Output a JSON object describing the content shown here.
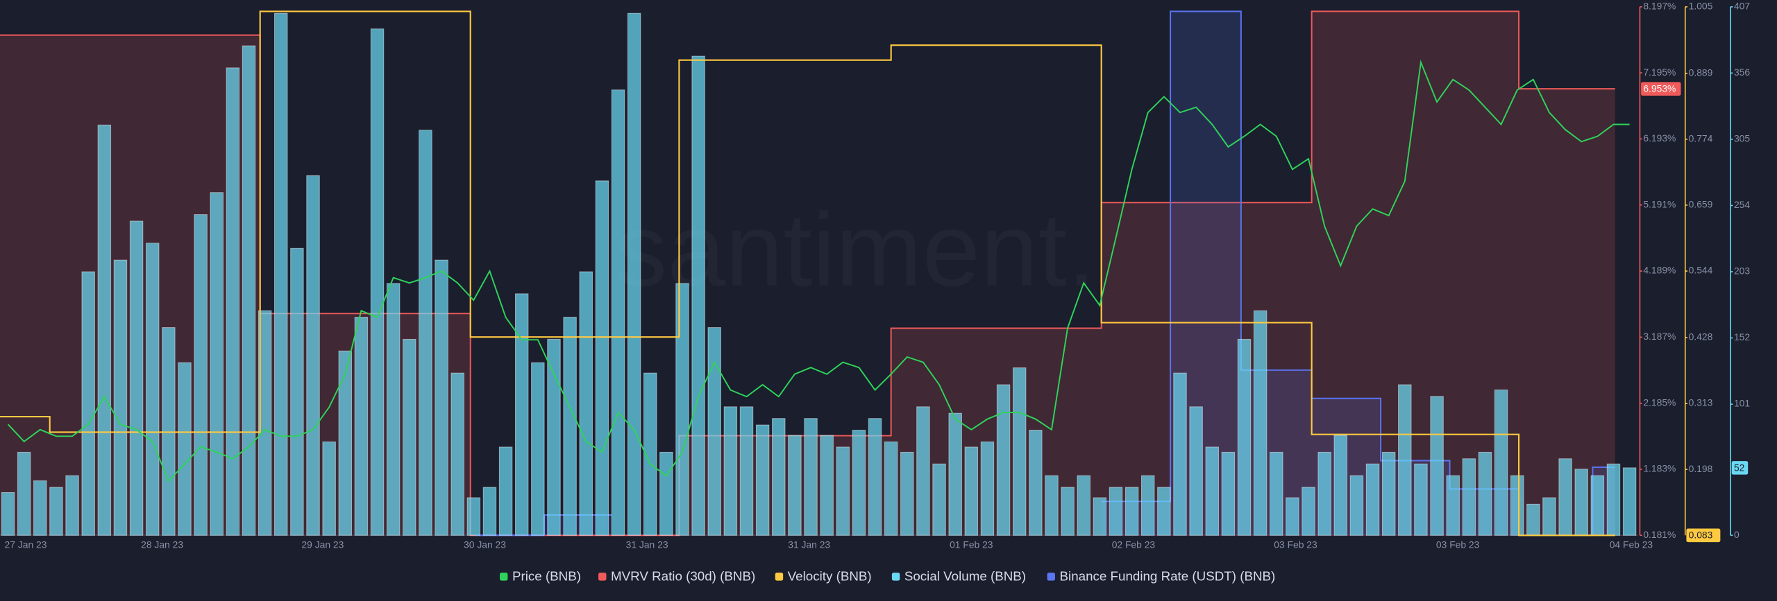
{
  "chart_data": {
    "type": "line",
    "watermark": "santiment.",
    "xlim": [
      0,
      102
    ],
    "xticks": [
      {
        "value": 1.6,
        "label": "27 Jan 23"
      },
      {
        "value": 10.1,
        "label": "28 Jan 23"
      },
      {
        "value": 20.1,
        "label": "29 Jan 23"
      },
      {
        "value": 30.2,
        "label": "30 Jan 23"
      },
      {
        "value": 40.3,
        "label": "31 Jan 23"
      },
      {
        "value": 50.4,
        "label": "31 Jan 23"
      },
      {
        "value": 60.5,
        "label": "01 Feb 23"
      },
      {
        "value": 70.6,
        "label": "02 Feb 23"
      },
      {
        "value": 80.7,
        "label": "03 Feb 23"
      },
      {
        "value": 90.8,
        "label": "03 Feb 23"
      },
      {
        "value": 101.6,
        "label": "04 Feb 23"
      }
    ],
    "x": [
      0.5,
      1.5,
      2.5,
      3.5,
      4.5,
      5.5,
      6.5,
      7.5,
      8.5,
      9.5,
      10.5,
      11.5,
      12.5,
      13.5,
      14.5,
      15.5,
      16.5,
      17.5,
      18.5,
      19.5,
      20.5,
      21.5,
      22.5,
      23.5,
      24.5,
      25.5,
      26.5,
      27.5,
      28.5,
      29.5,
      30.5,
      31.5,
      32.5,
      33.5,
      34.5,
      35.5,
      36.5,
      37.5,
      38.5,
      39.5,
      40.5,
      41.5,
      42.5,
      43.5,
      44.5,
      45.5,
      46.5,
      47.5,
      48.5,
      49.5,
      50.5,
      51.5,
      52.5,
      53.5,
      54.5,
      55.5,
      56.5,
      57.5,
      58.5,
      59.5,
      60.5,
      61.5,
      62.5,
      63.5,
      64.5,
      65.5,
      66.5,
      67.5,
      68.5,
      69.5,
      70.5,
      71.5,
      72.5,
      73.5,
      74.5,
      75.5,
      76.5,
      77.5,
      78.5,
      79.5,
      80.5,
      81.5,
      82.5,
      83.5,
      84.5,
      85.5,
      86.5,
      87.5,
      88.5,
      89.5,
      90.5,
      91.5,
      92.5,
      93.5,
      94.5,
      95.5,
      96.5,
      97.5,
      98.5,
      99.5,
      100.5,
      101.5
    ],
    "y_axes": [
      {
        "color": "#f05a5a",
        "ylim": [
          0.181,
          8.197
        ],
        "yticks": [
          {
            "value": 8.197,
            "label": "8.197%"
          },
          {
            "value": 7.195,
            "label": "7.195%"
          },
          {
            "value": 6.193,
            "label": "6.193%"
          },
          {
            "value": 5.191,
            "label": "5.191%"
          },
          {
            "value": 4.189,
            "label": "4.189%"
          },
          {
            "value": 3.187,
            "label": "3.187%"
          },
          {
            "value": 2.185,
            "label": "2.185%"
          },
          {
            "value": 1.183,
            "label": "1.183%"
          },
          {
            "value": 0.181,
            "label": "0.181%"
          }
        ]
      },
      {
        "color": "#ffc940",
        "ylim": [
          0.083,
          1.005
        ],
        "yticks": [
          1.005,
          0.889,
          0.774,
          0.659,
          0.544,
          0.428,
          0.313,
          0.198
        ]
      },
      {
        "color": "#6ad8f2",
        "ylim": [
          0,
          407
        ],
        "yticks": [
          407,
          356,
          305,
          254,
          203,
          152,
          101,
          0
        ]
      }
    ],
    "series": [
      {
        "name": "Price (BNB)",
        "color": "#2fd35a",
        "kind": "line",
        "ylim": [
          296,
          336
        ],
        "values": [
          304.4,
          303.1,
          304.0,
          303.5,
          303.5,
          304.4,
          306.5,
          304.4,
          304.0,
          303.1,
          300.1,
          301.4,
          302.7,
          302.3,
          301.8,
          302.7,
          304.0,
          303.5,
          303.5,
          304.0,
          305.7,
          308.2,
          313.0,
          312.5,
          315.5,
          315.1,
          315.5,
          316.0,
          315.1,
          313.8,
          316.0,
          312.5,
          310.8,
          310.8,
          308.2,
          305.7,
          303.1,
          302.3,
          305.3,
          304.0,
          301.4,
          300.5,
          302.3,
          306.5,
          309.1,
          307.0,
          306.5,
          307.4,
          306.5,
          308.2,
          308.7,
          308.2,
          309.1,
          308.7,
          307.0,
          308.2,
          309.5,
          309.1,
          307.4,
          304.8,
          304.0,
          304.8,
          305.3,
          305.3,
          304.8,
          304.0,
          311.7,
          315.1,
          313.4,
          318.5,
          323.7,
          328.0,
          329.2,
          328.0,
          328.4,
          327.1,
          325.4,
          326.2,
          327.1,
          326.2,
          323.7,
          324.5,
          319.4,
          316.4,
          319.4,
          320.7,
          320.2,
          322.8,
          331.8,
          328.8,
          330.5,
          329.7,
          328.4,
          327.1,
          329.7,
          330.5,
          328.0,
          326.7,
          325.8,
          326.2,
          327.1,
          327.1
        ]
      },
      {
        "name": "MVRV Ratio (30d) (BNB)",
        "color": "#f05a5a",
        "kind": "step-area",
        "axis": 0,
        "last_value_label": "6.953%",
        "x": [
          0,
          16.2,
          29.3,
          42.3,
          55.5,
          68.6,
          81.7,
          94.6,
          100.6
        ],
        "values": [
          7.768,
          3.545,
          0.181,
          1.692,
          3.322,
          5.228,
          8.128,
          6.953,
          6.953
        ]
      },
      {
        "name": "Velocity (BNB)",
        "color": "#ffc940",
        "kind": "step",
        "axis": 1,
        "last_value_label": "0.083",
        "x": [
          0,
          3.1,
          16.2,
          29.3,
          42.3,
          55.5,
          68.6,
          81.7,
          94.6,
          100.6
        ],
        "values": [
          0.29,
          0.263,
          0.997,
          0.429,
          0.912,
          0.938,
          0.454,
          0.259,
          0.083,
          0.083
        ]
      },
      {
        "name": "Social Volume (BNB)",
        "color": "#6ad8f2",
        "kind": "bar",
        "axis": 2,
        "last_value_label": "52",
        "values": [
          33,
          64,
          42,
          37,
          46,
          203,
          316,
          212,
          242,
          225,
          160,
          133,
          247,
          264,
          360,
          377,
          173,
          402,
          221,
          277,
          72,
          142,
          168,
          390,
          194,
          151,
          312,
          212,
          125,
          29,
          37,
          68,
          186,
          133,
          151,
          168,
          203,
          273,
          343,
          402,
          125,
          64,
          194,
          369,
          160,
          99,
          99,
          85,
          90,
          77,
          90,
          77,
          68,
          81,
          90,
          72,
          64,
          99,
          55,
          94,
          68,
          72,
          116,
          129,
          81,
          46,
          37,
          46,
          29,
          37,
          37,
          46,
          37,
          125,
          99,
          68,
          64,
          151,
          173,
          64,
          29,
          37,
          64,
          77,
          46,
          55,
          64,
          116,
          55,
          107,
          46,
          59,
          64,
          112,
          46,
          24,
          29,
          59,
          51,
          46,
          55,
          52
        ]
      },
      {
        "name": "Binance Funding Rate (USDT) (BNB)",
        "color": "#5b74f0",
        "kind": "step-area",
        "ylim": [
          0,
          10.7
        ],
        "x": [
          29.6,
          33.9,
          38.1,
          50,
          68.6,
          72.9,
          77.3,
          81.7,
          86.0,
          90.3,
          94.6,
          99.2,
          100.6
        ],
        "values": [
          0,
          0.412,
          0.412,
          null,
          0.687,
          10.608,
          3.345,
          2.772,
          1.512,
          0.939,
          0,
          1.379,
          1.379
        ]
      }
    ]
  }
}
